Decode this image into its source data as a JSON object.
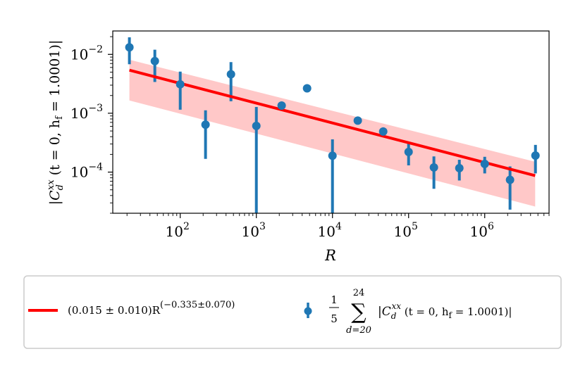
{
  "chart_data": {
    "type": "scatter",
    "xscale": "log",
    "yscale": "log",
    "xlim": [
      13,
      7000000
    ],
    "ylim": [
      2e-05,
      0.025
    ],
    "xlabel": "R",
    "ylabel": "|C_d^{xx} (t = 0, h_f = 1.0001)|",
    "x_ticks": [
      {
        "value": 100,
        "mantissa": "10",
        "exp": "2"
      },
      {
        "value": 1000,
        "mantissa": "10",
        "exp": "3"
      },
      {
        "value": 10000,
        "mantissa": "10",
        "exp": "4"
      },
      {
        "value": 100000,
        "mantissa": "10",
        "exp": "5"
      },
      {
        "value": 1000000,
        "mantissa": "10",
        "exp": "6"
      }
    ],
    "y_ticks": [
      {
        "value": 0.01,
        "mantissa": "10",
        "exp": "−2"
      },
      {
        "value": 0.001,
        "mantissa": "10",
        "exp": "−3"
      },
      {
        "value": 0.0001,
        "mantissa": "10",
        "exp": "−4"
      }
    ],
    "fit": {
      "name": "(0.015 ± 0.010)R^(−0.335±0.070)",
      "color": "#ff0000",
      "band_color": "#ffc8c8",
      "x_range": [
        21.5,
        4600000
      ],
      "line_y": [
        0.0054,
        8.7e-05
      ],
      "band_upper": [
        0.0081,
        0.00015
      ],
      "band_lower": [
        0.00165,
        2.6e-05
      ]
    },
    "series": [
      {
        "name": "1/5 Σ_{d=20}^{24} |C_d^{xx} (t = 0, h_f = 1.0001)|",
        "color": "#1f77b4",
        "points": [
          {
            "x": 21.5,
            "y": 0.0132,
            "ylo": 0.0068,
            "yhi": 0.0195
          },
          {
            "x": 46.4,
            "y": 0.0077,
            "ylo": 0.0034,
            "yhi": 0.012
          },
          {
            "x": 100,
            "y": 0.0031,
            "ylo": 0.00115,
            "yhi": 0.0051
          },
          {
            "x": 215,
            "y": 0.00064,
            "ylo": 0.000168,
            "yhi": 0.00112
          },
          {
            "x": 464,
            "y": 0.0046,
            "ylo": 0.0016,
            "yhi": 0.0074
          },
          {
            "x": 1000,
            "y": 0.00061,
            "ylo": 2e-05,
            "yhi": 0.00128
          },
          {
            "x": 2150,
            "y": 0.00135,
            "ylo": 0.00135,
            "yhi": 0.00135
          },
          {
            "x": 4640,
            "y": 0.00265,
            "ylo": 0.00265,
            "yhi": 0.00265
          },
          {
            "x": 10000,
            "y": 0.00019,
            "ylo": 2e-05,
            "yhi": 0.00036
          },
          {
            "x": 21500,
            "y": 0.00075,
            "ylo": 0.00075,
            "yhi": 0.00075
          },
          {
            "x": 46400,
            "y": 0.00049,
            "ylo": 0.00049,
            "yhi": 0.00049
          },
          {
            "x": 100000,
            "y": 0.00022,
            "ylo": 0.00013,
            "yhi": 0.00031
          },
          {
            "x": 215000,
            "y": 0.00012,
            "ylo": 5.2e-05,
            "yhi": 0.000185
          },
          {
            "x": 464000,
            "y": 0.000117,
            "ylo": 7.2e-05,
            "yhi": 0.000162
          },
          {
            "x": 1000000,
            "y": 0.000138,
            "ylo": 9.5e-05,
            "yhi": 0.000182
          },
          {
            "x": 2150000,
            "y": 7.4e-05,
            "ylo": 2.3e-05,
            "yhi": 0.000125
          },
          {
            "x": 4640000,
            "y": 0.000191,
            "ylo": 9.5e-05,
            "yhi": 0.00029
          }
        ]
      }
    ],
    "legend": {
      "placement": "bottom-outside",
      "fit_label": "(0.015 ± 0.010)R",
      "fit_label_exp": "(−0.335±0.070)",
      "data_frac_num": "1",
      "data_frac_den": "5",
      "data_sum_symbol": "∑",
      "data_sum_upper": "24",
      "data_sum_lower": "d=20",
      "data_expr": "|C",
      "data_expr_sub": "d",
      "data_expr_sup": "xx",
      "data_expr_rest": " (t = 0, h",
      "data_expr_rest_sub": "f",
      "data_expr_tail": " = 1.0001)|"
    },
    "ylabel_parts": {
      "open": "|C",
      "sub": "d",
      "sup": "xx",
      "mid": " (t = 0, h",
      "sub2": "f",
      "tail": " = 1.0001)|"
    }
  }
}
